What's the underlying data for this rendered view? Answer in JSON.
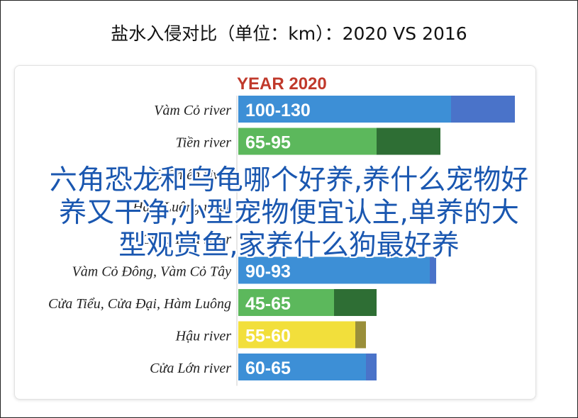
{
  "title": "盐水入侵对比（单位：km）：2020 VS 2016",
  "overlay_lines": [
    "六角恐龙和乌龟哪个好养,养什么宠物好",
    "养又干净,小型宠物便宜认主,单养的大",
    "型观赏鱼,家养什么狗最好养"
  ],
  "colors": {
    "blue": "#3d8fd6",
    "green": "#5cb85c",
    "yellow": "#f2df3b",
    "legend_red": "#c0392b"
  },
  "chart_data": {
    "type": "bar",
    "title": "YEAR 2020",
    "categories": [
      "Vàm Cỏ river",
      "Tiền river",
      "Cổ Chiên river",
      "Hàm Luông river",
      "Cung Hầu river",
      "Vàm Cỏ Đông, Vàm Cỏ Tây",
      "Cửa Tiểu, Cửa Đại, Hàm Luông",
      "Hậu river",
      "Cửa Lớn river"
    ],
    "labels": [
      "100-130",
      "65-95",
      "",
      "",
      "",
      "90-93",
      "45-65",
      "55-60",
      "60-65"
    ],
    "ranges": [
      [
        100,
        130
      ],
      [
        65,
        95
      ],
      [
        null,
        null
      ],
      [
        null,
        null
      ],
      [
        null,
        null
      ],
      [
        90,
        93
      ],
      [
        45,
        65
      ],
      [
        55,
        60
      ],
      [
        60,
        65
      ]
    ],
    "colors": [
      "blue",
      "green",
      "yellow",
      "blue",
      "green",
      "blue",
      "green",
      "yellow",
      "blue"
    ]
  }
}
